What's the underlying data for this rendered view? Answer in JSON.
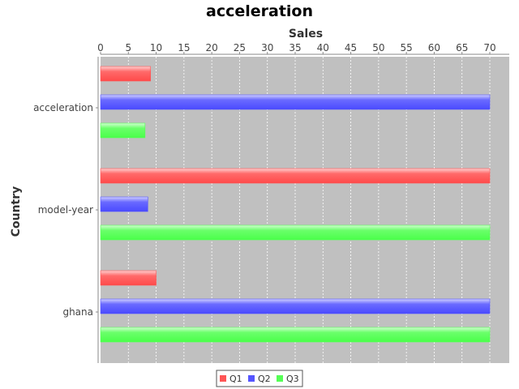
{
  "chart_data": {
    "type": "bar",
    "orientation": "horizontal",
    "title": "acceleration",
    "xlabel": "Sales",
    "ylabel": "Country",
    "categories": [
      "acceleration",
      "model-year",
      "ghana"
    ],
    "series": [
      {
        "name": "Q1",
        "values": [
          9,
          70,
          10
        ]
      },
      {
        "name": "Q2",
        "values": [
          70,
          8.5,
          70
        ]
      },
      {
        "name": "Q3",
        "values": [
          8,
          70,
          70
        ]
      }
    ],
    "xlim": [
      0,
      73.5
    ],
    "xticks": [
      0,
      5,
      10,
      15,
      20,
      25,
      30,
      35,
      40,
      45,
      50,
      55,
      60,
      65,
      70
    ],
    "grid": true,
    "legend_position": "bottom",
    "colors": {
      "Q1": "#ff5555",
      "Q2": "#5555ff",
      "Q3": "#55ff55",
      "plot_background": "#c0c0c0"
    }
  }
}
